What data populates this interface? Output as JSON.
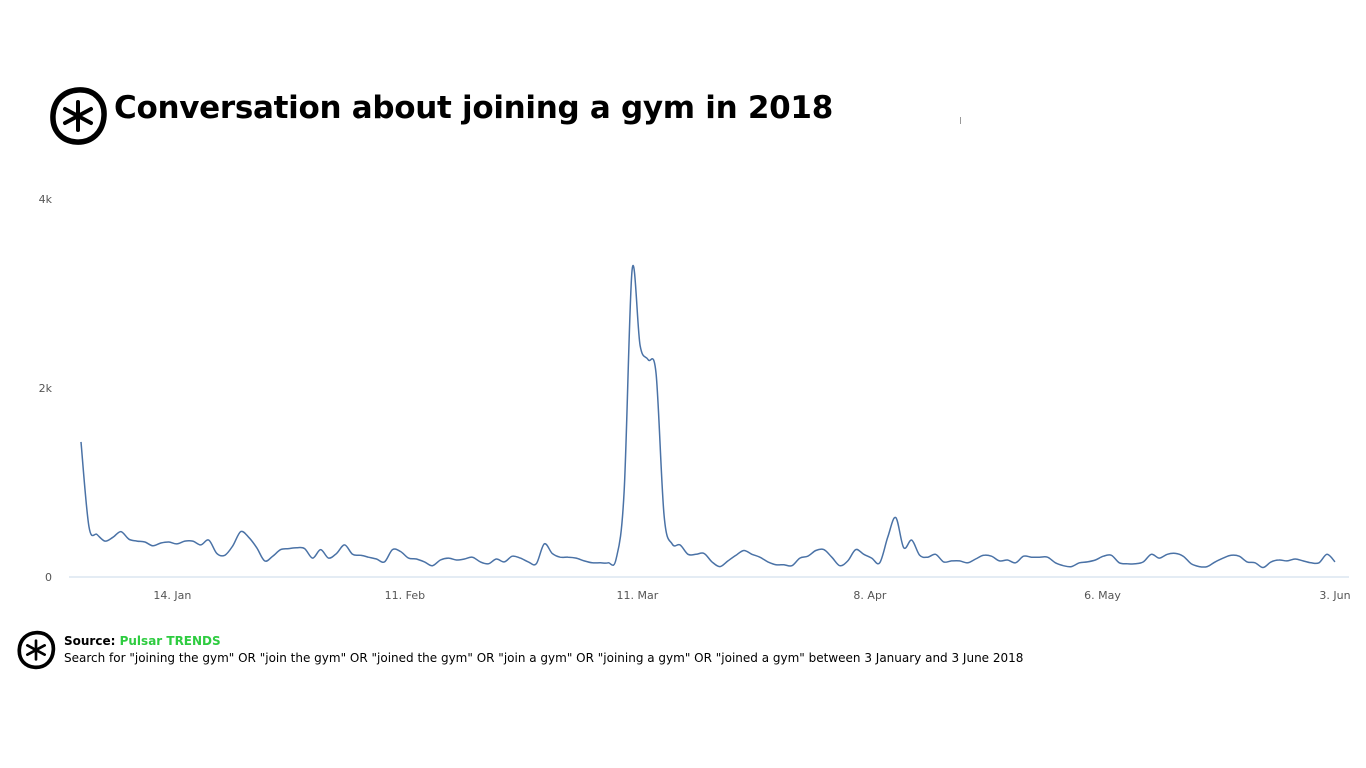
{
  "header": {
    "title": "Conversation about joining a gym in 2018",
    "logo_icon": "pulsar-asterisk-logo-icon"
  },
  "footer": {
    "source_label": "Source:",
    "source_name": "Pulsar TRENDS",
    "query": "Search for \"joining the gym\" OR \"join the gym\" OR \"joined the gym\" OR \"join a gym\" OR \"joining a gym\" OR \"joined a gym\" between 3 January and 3 June 2018",
    "logo_icon": "pulsar-asterisk-logo-icon"
  },
  "colors": {
    "line": "#4a72a6",
    "axis": "#c8d8e8",
    "source_accent": "#2ecc40"
  },
  "chart_data": {
    "type": "line",
    "title": "Conversation about joining a gym in 2018",
    "xlabel": "",
    "ylabel": "",
    "x_start": "2018-01-03",
    "x_end": "2018-06-03",
    "xlim": [
      "2018-01-03",
      "2018-06-03"
    ],
    "ylim": [
      0,
      4000
    ],
    "y_ticks": [
      0,
      2000,
      4000
    ],
    "y_tick_labels": [
      "0",
      "2k",
      "4k"
    ],
    "x_ticks": [
      {
        "date": "2018-01-14",
        "label": "14. Jan"
      },
      {
        "date": "2018-02-11",
        "label": "11. Feb"
      },
      {
        "date": "2018-03-11",
        "label": "11. Mar"
      },
      {
        "date": "2018-04-08",
        "label": "8. Apr"
      },
      {
        "date": "2018-05-06",
        "label": "6. May"
      },
      {
        "date": "2018-06-03",
        "label": "3. Jun"
      }
    ],
    "grid": false,
    "legend": "none",
    "series": [
      {
        "values": [
          1430,
          530,
          450,
          380,
          420,
          480,
          400,
          380,
          370,
          330,
          360,
          370,
          350,
          380,
          380,
          340,
          390,
          250,
          230,
          330,
          480,
          420,
          310,
          170,
          220,
          290,
          300,
          310,
          300,
          200,
          290,
          200,
          250,
          340,
          240,
          230,
          210,
          190,
          160,
          290,
          270,
          200,
          190,
          160,
          120,
          180,
          200,
          180,
          190,
          210,
          160,
          140,
          190,
          160,
          220,
          200,
          160,
          140,
          350,
          250,
          210,
          210,
          200,
          170,
          150,
          150,
          150,
          190,
          900,
          3250,
          2450,
          2300,
          2150,
          650,
          350,
          340,
          240,
          240,
          250,
          160,
          110,
          170,
          230,
          280,
          240,
          210,
          160,
          130,
          130,
          120,
          200,
          220,
          280,
          290,
          210,
          120,
          170,
          290,
          240,
          200,
          150,
          420,
          630,
          310,
          390,
          230,
          210,
          240,
          160,
          170,
          170,
          150,
          190,
          230,
          220,
          170,
          180,
          150,
          220,
          210,
          210,
          210,
          150,
          120,
          110,
          150,
          160,
          180,
          220,
          230,
          150,
          140,
          140,
          160,
          240,
          200,
          240,
          250,
          220,
          140,
          110,
          110,
          160,
          200,
          230,
          220,
          160,
          150,
          100,
          160,
          180,
          170,
          190,
          170,
          150,
          150,
          240,
          160
        ]
      }
    ]
  }
}
